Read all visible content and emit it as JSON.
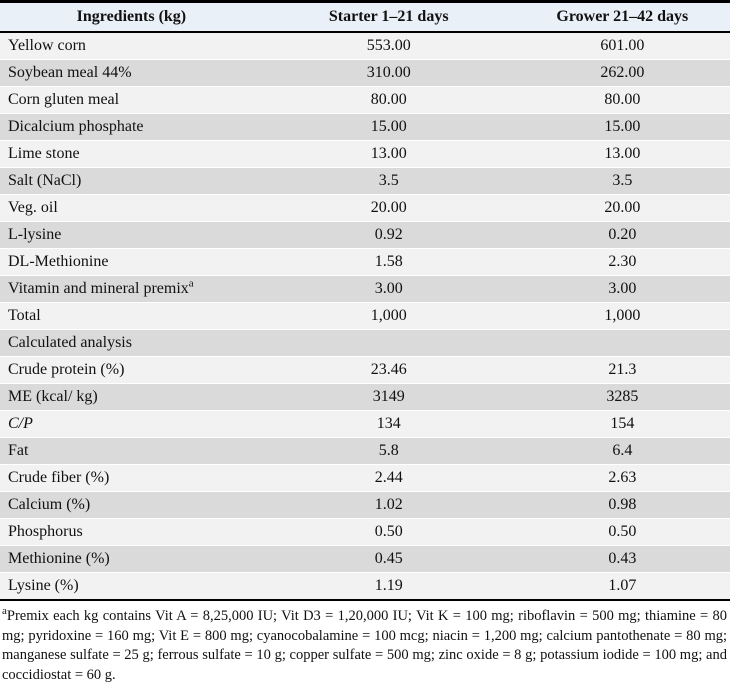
{
  "colors": {
    "header_bg": "#e9f0f8",
    "row_light": "#f2f2f2",
    "row_shaded": "#dadada",
    "border": "#000000",
    "text": "#111111"
  },
  "table": {
    "columns": [
      "Ingredients (kg)",
      "Starter 1–21 days",
      "Grower 21–42 days"
    ],
    "rows": [
      {
        "label": "Yellow corn",
        "starter": "553.00",
        "grower": "601.00"
      },
      {
        "label": "Soybean meal 44%",
        "starter": "310.00",
        "grower": "262.00"
      },
      {
        "label": "Corn gluten meal",
        "starter": "80.00",
        "grower": "80.00"
      },
      {
        "label": "Dicalcium phosphate",
        "starter": "15.00",
        "grower": "15.00"
      },
      {
        "label": "Lime stone",
        "starter": "13.00",
        "grower": "13.00"
      },
      {
        "label": "Salt (NaCl)",
        "starter": "3.5",
        "grower": "3.5"
      },
      {
        "label": "Veg. oil",
        "starter": "20.00",
        "grower": "20.00"
      },
      {
        "label": "L-lysine",
        "starter": "0.92",
        "grower": "0.20"
      },
      {
        "label": "DL-Methionine",
        "starter": "1.58",
        "grower": "2.30"
      },
      {
        "label": "Vitamin and mineral premix",
        "sup": "a",
        "starter": "3.00",
        "grower": "3.00"
      },
      {
        "label": "Total",
        "starter": "1,000",
        "grower": "1,000"
      },
      {
        "label": "Calculated analysis",
        "span": true
      },
      {
        "label": "Crude protein (%)",
        "starter": "23.46",
        "grower": "21.3"
      },
      {
        "label": "ME (kcal/ kg)",
        "starter": "3149",
        "grower": "3285"
      },
      {
        "label": "C/P",
        "italic": true,
        "starter": "134",
        "grower": "154"
      },
      {
        "label": "Fat",
        "starter": "5.8",
        "grower": "6.4"
      },
      {
        "label": "Crude fiber (%)",
        "starter": "2.44",
        "grower": "2.63"
      },
      {
        "label": "Calcium (%)",
        "starter": "1.02",
        "grower": "0.98"
      },
      {
        "label": "Phosphorus",
        "starter": "0.50",
        "grower": "0.50"
      },
      {
        "label": "Methionine (%)",
        "starter": "0.45",
        "grower": "0.43"
      },
      {
        "label": "Lysine (%)",
        "starter": "1.19",
        "grower": "1.07"
      }
    ]
  },
  "footnote": {
    "sup": "a",
    "text": "Premix each kg contains Vit A = 8,25,000 IU; Vit D3 = 1,20,000 IU; Vit K = 100 mg; riboflavin = 500 mg; thiamine = 80 mg; pyridoxine = 160 mg; Vit E = 800 mg; cyanocobalamine = 100 mcg; niacin = 1,200 mg; calcium pantothenate = 80 mg; manganese sulfate = 25 g; ferrous sulfate = 10 g; copper sulfate = 500 mg; zinc oxide = 8 g; potassium iodide = 100 mg; and coccidiostat = 60 g."
  }
}
